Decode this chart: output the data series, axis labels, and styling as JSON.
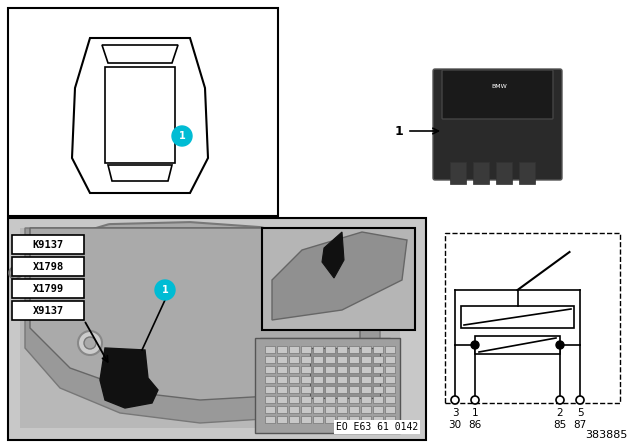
{
  "bg_color": "#ffffff",
  "label_number": "383885",
  "eo_label": "EO E63 61 0142",
  "connector_labels": [
    "K9137",
    "X1798",
    "X1799",
    "X9137"
  ],
  "pin_numbers_top": [
    "3",
    "1",
    "2",
    "5"
  ],
  "pin_numbers_bottom": [
    "30",
    "86",
    "85",
    "87"
  ],
  "teal_color": "#00BCD4",
  "relay_body_color": "#2a2a2a",
  "relay_edge_color": "#555555",
  "photo_bg": "#c0c0c0",
  "inset_bg": "#b0b0b0",
  "engine_dark": "#888888",
  "engine_mid": "#aaaaaa"
}
